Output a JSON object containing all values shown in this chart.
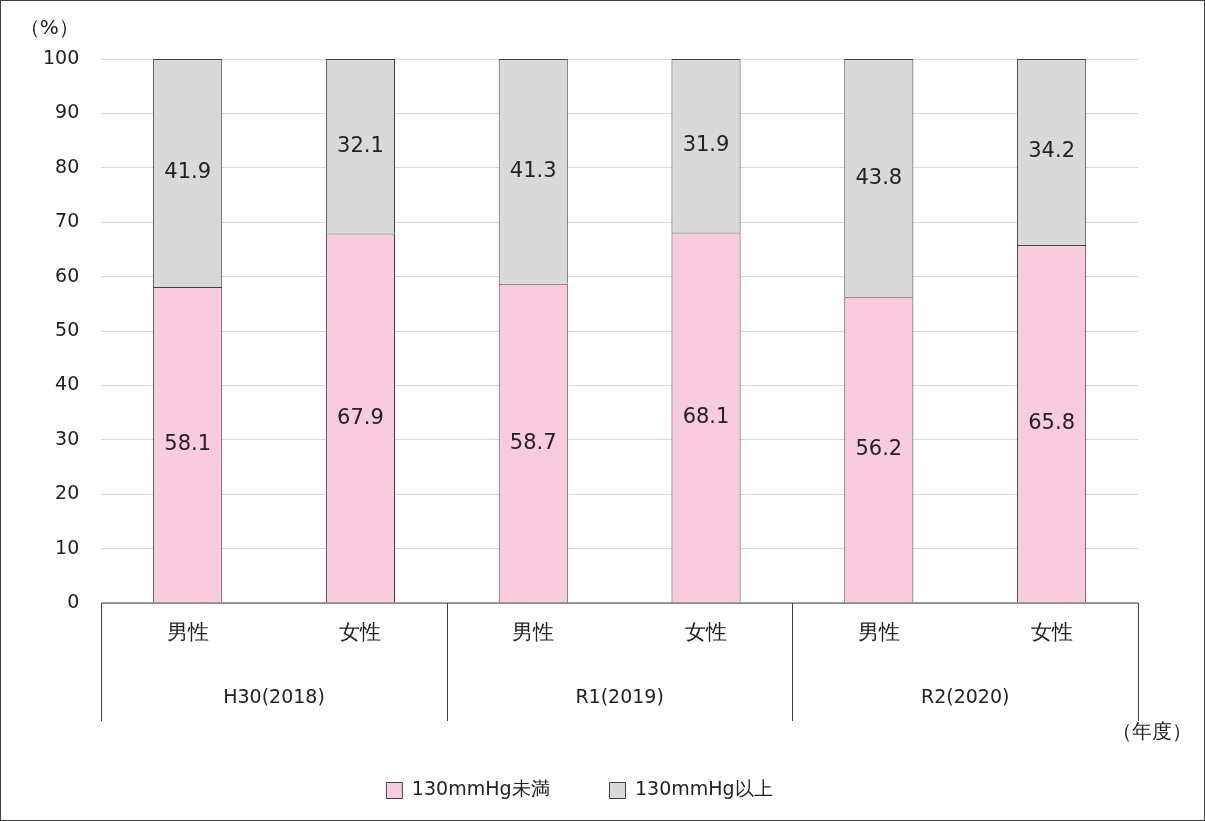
{
  "chart_data": {
    "type": "bar",
    "stacked": true,
    "ylabel": "（%）",
    "xlabel": "（年度）",
    "categories": [
      "男性",
      "女性",
      "男性",
      "女性",
      "男性",
      "女性"
    ],
    "annotations": [
      "H30(2018)",
      "R1(2019)",
      "R2(2020)"
    ],
    "series": [
      {
        "name": "130mmHg未満",
        "color": "#f8cbdf",
        "values": [
          58.1,
          67.9,
          58.7,
          68.1,
          56.2,
          65.8
        ]
      },
      {
        "name": "130mmHg以上",
        "color": "#d9d9d9",
        "values": [
          41.9,
          32.1,
          41.3,
          31.9,
          43.8,
          34.2
        ]
      }
    ],
    "ylim": [
      0,
      100
    ],
    "yticks": [
      0,
      10,
      20,
      30,
      40,
      50,
      60,
      70,
      80,
      90,
      100
    ],
    "grid": "y",
    "legend": "bottom",
    "data_labels": true
  }
}
